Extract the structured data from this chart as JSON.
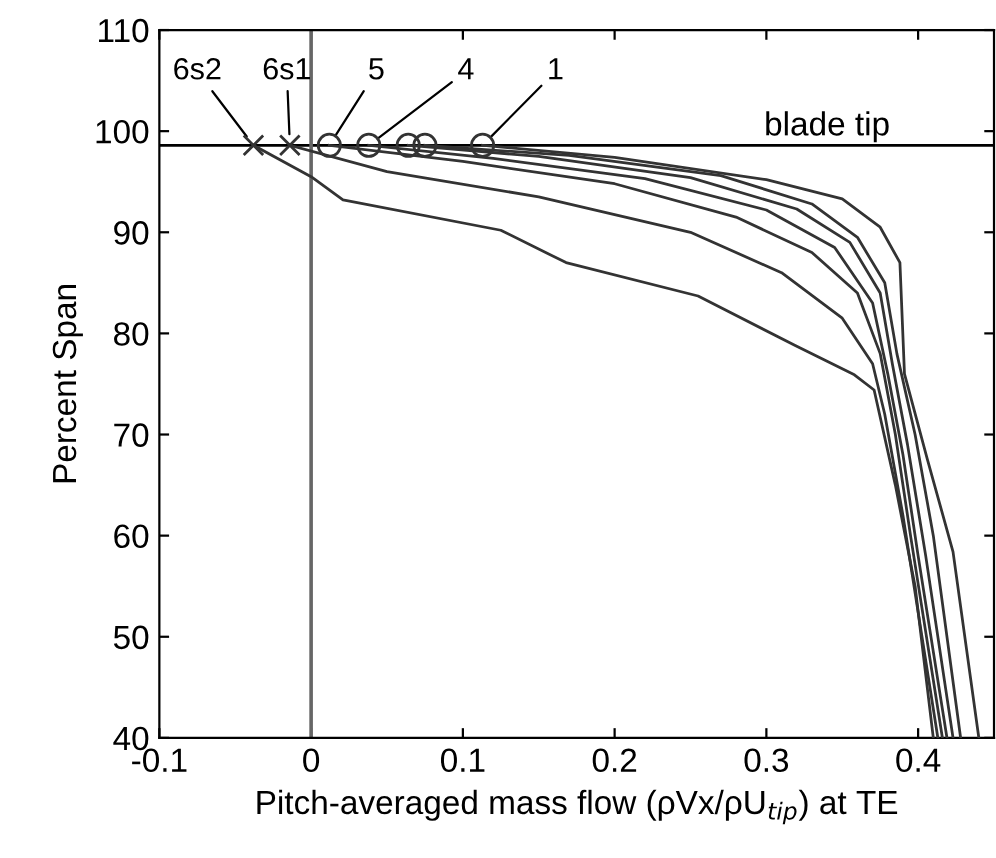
{
  "chart_data": {
    "type": "line",
    "xlabel": "Pitch-averaged mass flow (ρVx/ρU$_{tip}$) at TE",
    "ylabel": "Percent Span",
    "xlim": [
      -0.1,
      0.45
    ],
    "xticks": [
      -0.1,
      0,
      0.1,
      0.2,
      0.3,
      0.4
    ],
    "ylim": [
      40,
      110
    ],
    "yticks": [
      40,
      50,
      60,
      70,
      80,
      90,
      100,
      110
    ],
    "grid": false,
    "line_style": "solid",
    "series": [
      {
        "type": "scatter",
        "color": "#333333",
        "marker": "cross",
        "x": [
          -0.038,
          -0.014
        ],
        "values": [
          98.6,
          98.6
        ]
      },
      {
        "type": "scatter",
        "color": "#333333",
        "marker": "circle",
        "x": [
          0.012,
          0.038,
          0.064,
          0.075,
          0.113
        ],
        "values": [
          98.6,
          98.6,
          98.6,
          98.6,
          98.6
        ]
      },
      {
        "color": "#333333",
        "x": [
          -0.038,
          0.0,
          0.021,
          0.125,
          0.168,
          0.255,
          0.319,
          0.358,
          0.371,
          0.385,
          0.398,
          0.41
        ],
        "values": [
          98.6,
          95.5,
          93.2,
          90.2,
          87.0,
          83.7,
          78.8,
          75.9,
          74.4,
          65,
          55,
          40
        ]
      },
      {
        "color": "#333333",
        "x": [
          -0.014,
          0.05,
          0.15,
          0.25,
          0.31,
          0.35,
          0.37,
          0.378,
          0.39,
          0.413
        ],
        "values": [
          98.6,
          96.0,
          93.5,
          90,
          86,
          81.5,
          77,
          72,
          62,
          40
        ]
      },
      {
        "color": "#333333",
        "x": [
          0.012,
          0.1,
          0.2,
          0.28,
          0.33,
          0.36,
          0.375,
          0.385,
          0.395,
          0.416
        ],
        "values": [
          98.6,
          97,
          94.8,
          91.5,
          88,
          84,
          78,
          70,
          60,
          40
        ]
      },
      {
        "color": "#333333",
        "x": [
          0.038,
          0.12,
          0.22,
          0.3,
          0.345,
          0.37,
          0.38,
          0.39,
          0.4,
          0.419
        ],
        "values": [
          98.6,
          97.3,
          95.3,
          92.2,
          88.5,
          83,
          76,
          68,
          58,
          40
        ]
      },
      {
        "color": "#333333",
        "x": [
          0.064,
          0.15,
          0.25,
          0.32,
          0.355,
          0.375,
          0.383,
          0.393,
          0.405,
          0.423
        ],
        "values": [
          98.6,
          97.5,
          95.4,
          92.3,
          89,
          84,
          77,
          69,
          58,
          40
        ]
      },
      {
        "color": "#333333",
        "x": [
          0.075,
          0.17,
          0.27,
          0.33,
          0.36,
          0.378,
          0.386,
          0.398,
          0.41,
          0.428
        ],
        "values": [
          98.6,
          97.6,
          95.6,
          92.8,
          89.5,
          85,
          78,
          70,
          60,
          40
        ]
      },
      {
        "color": "#333333",
        "x": [
          0.113,
          0.2,
          0.3,
          0.35,
          0.375,
          0.388,
          0.391,
          0.406,
          0.423,
          0.44
        ],
        "values": [
          98.6,
          97.4,
          95.2,
          93.3,
          90.5,
          87,
          76,
          67.6,
          58.4,
          40
        ]
      }
    ],
    "ref_lines": [
      {
        "axis": "y",
        "value": 98.6,
        "label": "blade tip",
        "color": "#000000"
      },
      {
        "axis": "x",
        "value": 0,
        "color": "#666666"
      }
    ],
    "annotations": [
      {
        "text": "6s2",
        "x": -0.038,
        "y": 98.6
      },
      {
        "text": "6s1",
        "x": -0.014,
        "y": 98.6
      },
      {
        "text": "5",
        "x": 0.012,
        "y": 98.6
      },
      {
        "text": "4",
        "x": 0.038,
        "y": 98.6
      },
      {
        "text": "1",
        "x": 0.113,
        "y": 98.6
      }
    ]
  }
}
